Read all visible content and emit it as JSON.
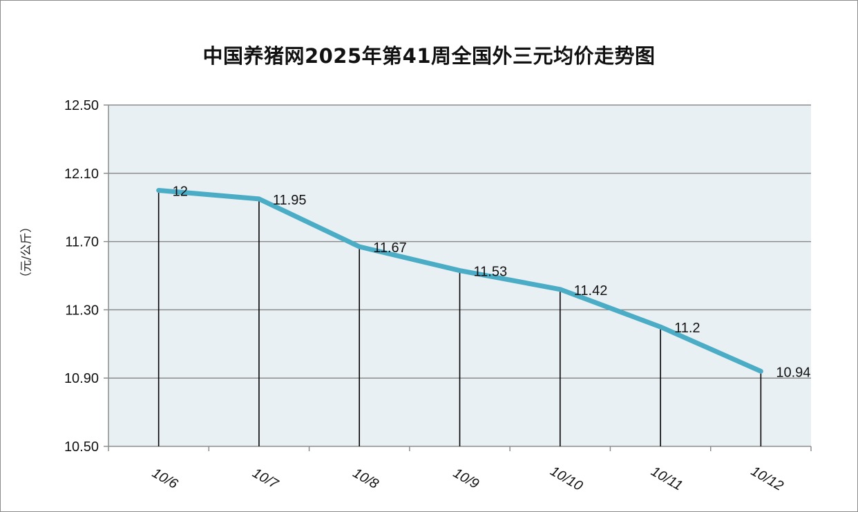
{
  "chart_data": {
    "type": "line",
    "title": "中国养猪网2025年第41周全国外三元均价走势图",
    "ylabel": "（元/公斤）",
    "xlabel": "",
    "categories": [
      "10/6",
      "10/7",
      "10/8",
      "10/9",
      "10/10",
      "10/11",
      "10/12"
    ],
    "series": [
      {
        "values": [
          12,
          11.95,
          11.67,
          11.53,
          11.42,
          11.2,
          10.94
        ],
        "data_labels": [
          "12",
          "11.95",
          "11.67",
          "11.53",
          "11.42",
          "11.2",
          "10.94"
        ]
      }
    ],
    "ylim": [
      10.5,
      12.5
    ],
    "yticks": [
      "10.50",
      "10.90",
      "11.30",
      "11.70",
      "12.10",
      "12.50"
    ],
    "grid": true,
    "drop_lines": true,
    "legend": "none",
    "colors": {
      "line": "#4bacc6",
      "plot_bg": "#e9f0f3",
      "grid": "#8c8c8c"
    }
  }
}
